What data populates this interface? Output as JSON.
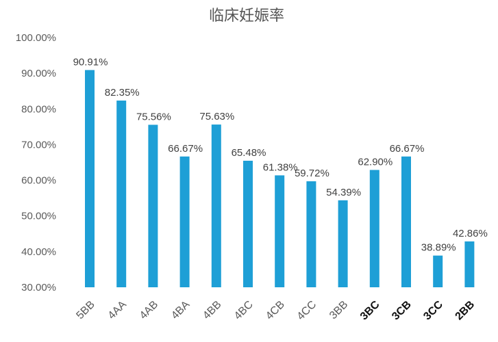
{
  "chart_data": {
    "type": "bar",
    "title": "临床妊娠率",
    "xlabel": "",
    "ylabel": "",
    "ylim": [
      30,
      100
    ],
    "yticks": [
      "30.00%",
      "40.00%",
      "50.00%",
      "60.00%",
      "70.00%",
      "80.00%",
      "90.00%",
      "100.00%"
    ],
    "grid": false,
    "categories": [
      "5BB",
      "4AA",
      "4AB",
      "4BA",
      "4BB",
      "4BC",
      "4CB",
      "4CC",
      "3BB",
      "3BC",
      "3CB",
      "3CC",
      "2BB"
    ],
    "values": [
      90.91,
      82.35,
      75.56,
      66.67,
      75.63,
      65.48,
      61.38,
      59.72,
      54.39,
      62.9,
      66.67,
      38.89,
      42.86
    ],
    "data_labels": [
      "90.91%",
      "82.35%",
      "75.56%",
      "66.67%",
      "75.63%",
      "65.48%",
      "61.38%",
      "59.72%",
      "54.39%",
      "62.90%",
      "66.67%",
      "38.89%",
      "42.86%"
    ],
    "bar_color": "#1E9FD6",
    "emphasized_categories": [
      "3BC",
      "3CB",
      "3CC",
      "2BB"
    ]
  }
}
